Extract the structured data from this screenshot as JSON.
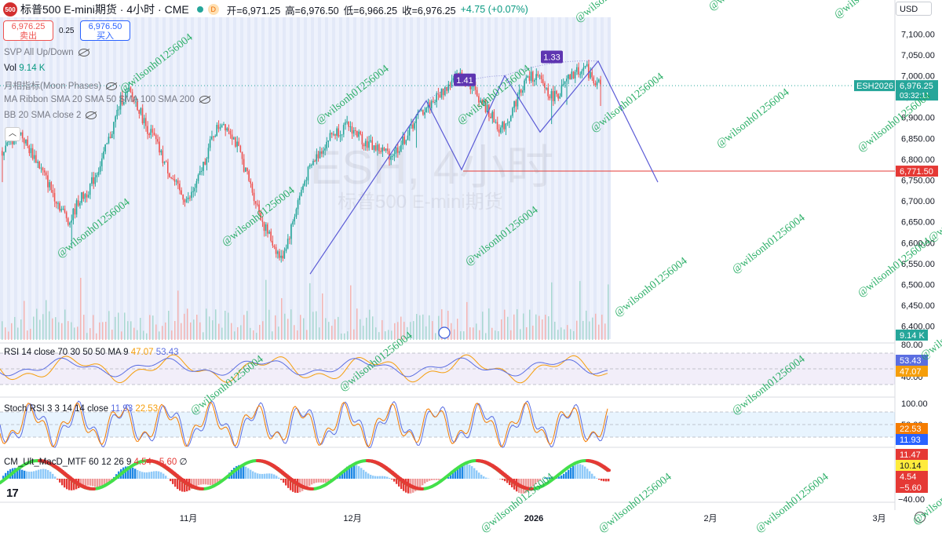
{
  "header": {
    "logo_text": "500",
    "symbol": "标普500 E-mini期货 · 4小时 · CME",
    "d_badge": "D",
    "open": "开=6,971.25",
    "high": "高=6,976.50",
    "low": "低=6,966.25",
    "close": "收=6,976.25",
    "change": "+4.75 (+0.07%)"
  },
  "trade": {
    "sell_price": "6,976.25",
    "sell_label": "卖出",
    "spread": "0.25",
    "buy_price": "6,976.50",
    "buy_label": "买入"
  },
  "indicators": {
    "svp": "SVP All Up/Down",
    "vol_label": "Vol",
    "vol_value": "9.14 K",
    "moon": "月相指标(Moon Phases)",
    "ma_ribbon": "MA Ribbon SMA 20 SMA 50 SMA 100 SMA 200",
    "bb": "BB 20 SMA close 2",
    "rsi_label": "RSI 14 close 70 30 50 50 MA 9",
    "rsi_v1": "47.07",
    "rsi_v2": "53.43",
    "stoch_label": "Stoch RSI 3 3 14 14 close",
    "stoch_v1": "11.93",
    "stoch_v2": "22.53",
    "macd_label": "CM_Ult_MacD_MTF 60 12 26 9",
    "macd_v1": "4.54",
    "macd_v2": "−5.60",
    "macd_v3": "∅"
  },
  "currency": "USD",
  "watermark_text": "@wilsonh01256004",
  "background_watermark": {
    "line1": "ESH, 4小时",
    "line2": "标普500 E-mini期货"
  },
  "chart_data": {
    "type": "candlestick",
    "timeframe": "4小时",
    "price_axis": {
      "ticks": [
        "7,100.00",
        "7,050.00",
        "7,000.00",
        "6,950.00",
        "6,900.00",
        "6,850.00",
        "6,800.00",
        "6,750.00",
        "6,700.00",
        "6,650.00",
        "6,600.00",
        "6,550.00",
        "6,500.00",
        "6,450.00",
        "6,400.00"
      ],
      "range": [
        6360,
        7140
      ]
    },
    "time_axis": [
      "11月",
      "12月",
      "2026",
      "2月",
      "3月"
    ],
    "last_price": {
      "symbol": "ESH2026",
      "price": "6,976.25",
      "countdown": "03:32:11",
      "value": 6976.25
    },
    "horizontal_line": {
      "label": "6,771.50",
      "value": 6771.5
    },
    "pattern_ratios": [
      "1.41",
      "1.33"
    ],
    "volume_label": "9.14 K",
    "rsi_axis": [
      "80.00",
      "40.00"
    ],
    "rsi_values": {
      "ma": "53.43",
      "rsi": "47.07"
    },
    "stoch_axis": [
      "100.00",
      "50.00"
    ],
    "stoch_values": {
      "d": "22.53",
      "k": "11.93"
    },
    "macd_axis": [
      "−40.00"
    ],
    "macd_values": [
      "11.47",
      "10.14",
      "4.54",
      "−5.60"
    ],
    "price_path": [
      6820,
      6840,
      6870,
      6830,
      6800,
      6760,
      6720,
      6680,
      6650,
      6700,
      6720,
      6760,
      6810,
      6870,
      6940,
      6960,
      6930,
      6880,
      6850,
      6800,
      6760,
      6720,
      6700,
      6740,
      6800,
      6860,
      6890,
      6870,
      6820,
      6760,
      6700,
      6640,
      6600,
      6560,
      6620,
      6700,
      6760,
      6800,
      6830,
      6860,
      6870,
      6880,
      6860,
      6840,
      6830,
      6820,
      6810,
      6830,
      6860,
      6900,
      6920,
      6940,
      6960,
      6980,
      7000,
      6990,
      6960,
      6930,
      6900,
      6870,
      6900,
      6950,
      6990,
      7000,
      6980,
      6950,
      6960,
      6990,
      7010,
      7020,
      6990,
      6976
    ]
  },
  "colors": {
    "up": "#26a69a",
    "down": "#ef5350",
    "pattern": "#5b5bd6",
    "hline": "#e53935",
    "badge": "#5e35b1",
    "last": "#26a69a",
    "watermark": "#19a85a"
  }
}
